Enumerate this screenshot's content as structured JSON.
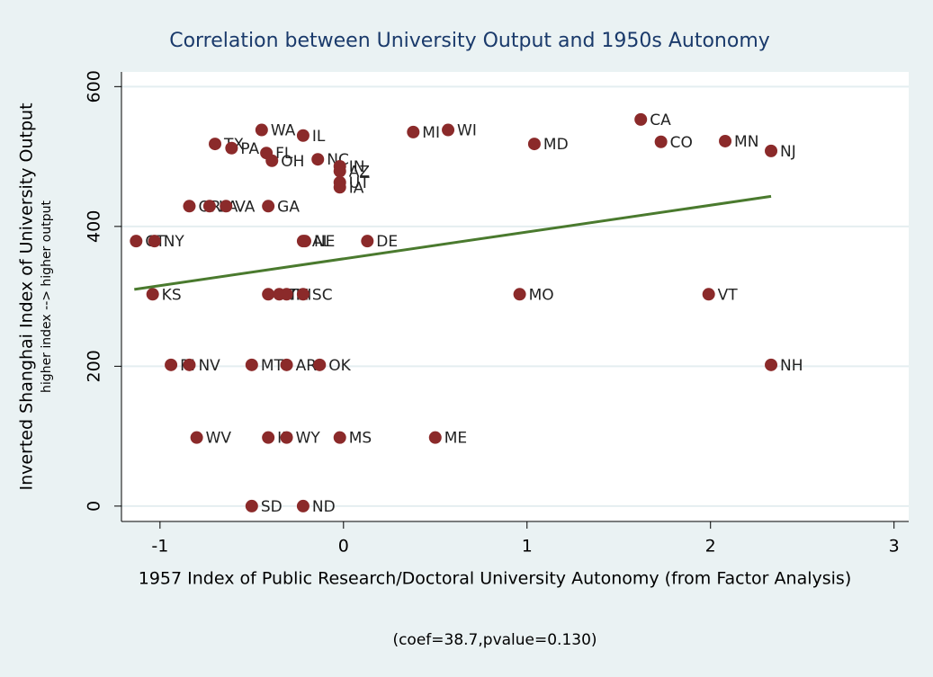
{
  "chart_data": {
    "type": "scatter",
    "title": "Correlation between University Output and 1950s Autonomy",
    "x_label": "1957 Index of Public Research/Doctoral University Autonomy (from Factor Analysis)",
    "y_label": "Inverted Shanghai Index of University Output",
    "y_sublabel": "higher index --> higher output",
    "note": "(coef=38.7,pvalue=0.130)",
    "color": "#8b2a2a",
    "point_labels": [
      "WA",
      "IL",
      "TX",
      "PA",
      "FL",
      "OH",
      "NC",
      "IN",
      "AZ",
      "UT",
      "IA",
      "MI",
      "WI",
      "MD",
      "CA",
      "CO",
      "MN",
      "NJ",
      "OR",
      "LA",
      "VA",
      "GA",
      "CT",
      "NY",
      "AL",
      "NE",
      "DE",
      "KS",
      "KY",
      "TN",
      "HI",
      "SC",
      "MO",
      "VT",
      "RI",
      "NV",
      "MT",
      "AR",
      "OK",
      "NH",
      "WV",
      "ID",
      "WY",
      "MS",
      "ME",
      "SD",
      "ND"
    ],
    "x": [
      -0.446,
      -0.22,
      -0.7,
      -0.61,
      -0.42,
      -0.39,
      -0.14,
      -0.02,
      -0.02,
      -0.02,
      -0.02,
      0.38,
      0.57,
      1.04,
      1.62,
      1.73,
      2.08,
      2.33,
      -0.84,
      -0.73,
      -0.64,
      -0.41,
      -1.13,
      -1.03,
      -0.22,
      -0.21,
      0.13,
      -1.04,
      -0.41,
      -0.35,
      -0.31,
      -0.22,
      0.96,
      1.99,
      -0.94,
      -0.84,
      -0.5,
      -0.31,
      -0.13,
      2.33,
      -0.8,
      -0.41,
      -0.31,
      -0.02,
      0.5,
      -0.5,
      -0.22
    ],
    "y": [
      538,
      530,
      518,
      512,
      505,
      494,
      496,
      486,
      479,
      463,
      456,
      535,
      538,
      518,
      553,
      521,
      522,
      508,
      429,
      429,
      429,
      429,
      379,
      379,
      379,
      379,
      379,
      303,
      303,
      303,
      303,
      303,
      303,
      303,
      202,
      202,
      202,
      202,
      202,
      202,
      98,
      98,
      98,
      98,
      98,
      0,
      0
    ],
    "fit": {
      "x": [
        -1.14,
        2.33
      ],
      "y": [
        310,
        443
      ],
      "color": "#4a7a2e"
    },
    "xlim": [
      -1.21,
      3.08
    ],
    "ylim": [
      -22,
      621
    ],
    "xticks": [
      -1,
      0,
      1,
      2,
      3
    ],
    "yticks": [
      0,
      200,
      400,
      600
    ],
    "grid": true
  }
}
